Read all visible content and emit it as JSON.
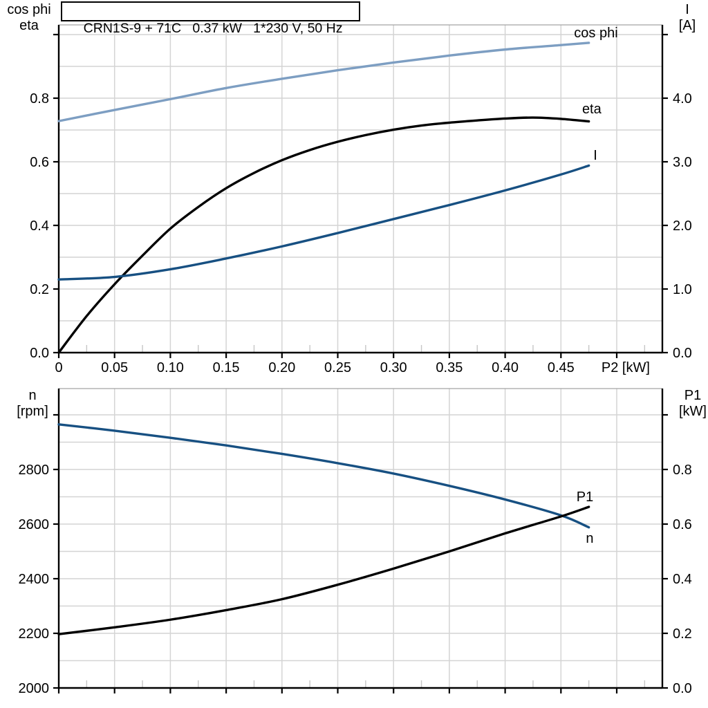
{
  "colors": {
    "curve_black": "#000000",
    "curve_light_blue": "#7d9ec2",
    "curve_dark_blue": "#175082",
    "grid": "#d4d4d4",
    "frame": "#a0a0a0",
    "axis": "#000000",
    "minor_tick": "#c6c6c6",
    "background": "#ffffff"
  },
  "corner_labels": {
    "top_left": [
      "cos phi",
      "eta"
    ],
    "top_right": [
      "I",
      "[A]"
    ],
    "bottom_left": [
      "n",
      "[rpm]"
    ],
    "bottom_right": [
      "P1",
      "[kW]"
    ]
  },
  "chart_data": [
    {
      "id": "top",
      "type": "line",
      "title": "CRN1S-9 + 71C   0.37 kW   1*230 V, 50 Hz",
      "x_axis": {
        "label": "P2 [kW]",
        "label_x": 0.508,
        "min": 0,
        "max": 0.54089,
        "minor_step": 0.025,
        "grid": [
          0.05,
          0.1,
          0.15,
          0.2,
          0.25,
          0.3,
          0.35,
          0.4,
          0.45,
          0.5
        ],
        "ticks": [
          {
            "v": 0,
            "t": "0"
          },
          {
            "v": 0.05,
            "t": "0.05"
          },
          {
            "v": 0.1,
            "t": "0.10"
          },
          {
            "v": 0.15,
            "t": "0.15"
          },
          {
            "v": 0.2,
            "t": "0.20"
          },
          {
            "v": 0.25,
            "t": "0.25"
          },
          {
            "v": 0.3,
            "t": "0.30"
          },
          {
            "v": 0.35,
            "t": "0.35"
          },
          {
            "v": 0.4,
            "t": "0.40"
          },
          {
            "v": 0.45,
            "t": "0.45"
          },
          {
            "v": 0.5,
            "t": ""
          }
        ]
      },
      "y_left": {
        "name": "cos phi / eta",
        "min": 0,
        "max": 1.03043,
        "grid": [
          0.1,
          0.2,
          0.3,
          0.4,
          0.5,
          0.6,
          0.7,
          0.8,
          0.9,
          1.0
        ],
        "ticks": [
          {
            "v": 0.0,
            "t": "0.0"
          },
          {
            "v": 0.2,
            "t": "0.2"
          },
          {
            "v": 0.4,
            "t": "0.4"
          },
          {
            "v": 0.6,
            "t": "0.6"
          },
          {
            "v": 0.8,
            "t": "0.8"
          },
          {
            "v": 1.0,
            "t": ""
          }
        ]
      },
      "y_right": {
        "name": "I [A]",
        "min": 0,
        "max": 5.15217,
        "ticks": [
          {
            "v": 0,
            "t": "0.0"
          },
          {
            "v": 1,
            "t": "1.0"
          },
          {
            "v": 2,
            "t": "2.0"
          },
          {
            "v": 3,
            "t": "3.0"
          },
          {
            "v": 4,
            "t": "4.0"
          },
          {
            "v": 5,
            "t": ""
          }
        ]
      },
      "series": [
        {
          "name": "cos-phi",
          "axis": "left",
          "color": "curve_light_blue",
          "width": 3.4,
          "points": [
            [
              0,
              0.728
            ],
            [
              0.05,
              0.763
            ],
            [
              0.1,
              0.797
            ],
            [
              0.15,
              0.832
            ],
            [
              0.2,
              0.861
            ],
            [
              0.25,
              0.888
            ],
            [
              0.3,
              0.912
            ],
            [
              0.35,
              0.934
            ],
            [
              0.4,
              0.953
            ],
            [
              0.45,
              0.967
            ],
            [
              0.475,
              0.974
            ]
          ],
          "label": {
            "text": "cos phi",
            "x": 0.4814,
            "y": 0.9913
          }
        },
        {
          "name": "eta",
          "axis": "left",
          "color": "curve_black",
          "width": 3.4,
          "points": [
            [
              0,
              0
            ],
            [
              0.025,
              0.115
            ],
            [
              0.05,
              0.215
            ],
            [
              0.075,
              0.305
            ],
            [
              0.1,
              0.39
            ],
            [
              0.125,
              0.458
            ],
            [
              0.15,
              0.517
            ],
            [
              0.175,
              0.565
            ],
            [
              0.2,
              0.605
            ],
            [
              0.225,
              0.637
            ],
            [
              0.25,
              0.663
            ],
            [
              0.275,
              0.684
            ],
            [
              0.3,
              0.701
            ],
            [
              0.325,
              0.714
            ],
            [
              0.35,
              0.723
            ],
            [
              0.375,
              0.73
            ],
            [
              0.4,
              0.736
            ],
            [
              0.425,
              0.739
            ],
            [
              0.45,
              0.735
            ],
            [
              0.475,
              0.727
            ]
          ],
          "label": {
            "text": "eta",
            "x": 0.4776,
            "y": 0.7522
          }
        },
        {
          "name": "current",
          "axis": "right",
          "color": "curve_dark_blue",
          "width": 3.4,
          "points": [
            [
              0,
              1.15
            ],
            [
              0.05,
              1.19
            ],
            [
              0.1,
              1.31
            ],
            [
              0.15,
              1.48
            ],
            [
              0.2,
              1.67
            ],
            [
              0.25,
              1.88
            ],
            [
              0.3,
              2.1
            ],
            [
              0.35,
              2.32
            ],
            [
              0.4,
              2.55
            ],
            [
              0.45,
              2.8
            ],
            [
              0.475,
              2.94
            ]
          ],
          "label": {
            "text": "I",
            "x": 0.4808,
            "y": 3.0326
          }
        }
      ]
    },
    {
      "id": "bottom",
      "type": "line",
      "title": "",
      "x_axis": {
        "label": "",
        "label_x": 0.508,
        "min": 0,
        "max": 0.54089,
        "minor_step": 0.025,
        "grid": [
          0.05,
          0.1,
          0.15,
          0.2,
          0.25,
          0.3,
          0.35,
          0.4,
          0.45,
          0.5
        ],
        "ticks": [
          {
            "v": 0,
            "t": ""
          },
          {
            "v": 0.05,
            "t": ""
          },
          {
            "v": 0.1,
            "t": ""
          },
          {
            "v": 0.15,
            "t": ""
          },
          {
            "v": 0.2,
            "t": ""
          },
          {
            "v": 0.25,
            "t": ""
          },
          {
            "v": 0.3,
            "t": ""
          },
          {
            "v": 0.35,
            "t": ""
          },
          {
            "v": 0.4,
            "t": ""
          },
          {
            "v": 0.45,
            "t": ""
          },
          {
            "v": 0.5,
            "t": ""
          }
        ]
      },
      "y_left": {
        "name": "n [rpm]",
        "min": 2000,
        "max": 3096.2,
        "grid": [
          2100,
          2200,
          2300,
          2400,
          2500,
          2600,
          2700,
          2800,
          2900,
          3000
        ],
        "ticks": [
          {
            "v": 2000,
            "t": "2000"
          },
          {
            "v": 2200,
            "t": "2200"
          },
          {
            "v": 2400,
            "t": "2400"
          },
          {
            "v": 2600,
            "t": "2600"
          },
          {
            "v": 2800,
            "t": "2800"
          },
          {
            "v": 3000,
            "t": ""
          }
        ]
      },
      "y_right": {
        "name": "P1 [kW]",
        "min": 0,
        "max": 1.0962,
        "ticks": [
          {
            "v": 0.0,
            "t": "0.0"
          },
          {
            "v": 0.2,
            "t": "0.2"
          },
          {
            "v": 0.4,
            "t": "0.4"
          },
          {
            "v": 0.6,
            "t": "0.6"
          },
          {
            "v": 0.8,
            "t": "0.8"
          },
          {
            "v": 1.0,
            "t": ""
          }
        ]
      },
      "series": [
        {
          "name": "speed",
          "axis": "left",
          "color": "curve_dark_blue",
          "width": 3.4,
          "points": [
            [
              0,
              2965
            ],
            [
              0.05,
              2942
            ],
            [
              0.1,
              2916
            ],
            [
              0.15,
              2888
            ],
            [
              0.2,
              2857
            ],
            [
              0.25,
              2823
            ],
            [
              0.3,
              2785
            ],
            [
              0.35,
              2740
            ],
            [
              0.4,
              2690
            ],
            [
              0.45,
              2632
            ],
            [
              0.475,
              2588
            ]
          ],
          "label": {
            "text": "n",
            "x": 0.4758,
            "y": 2531.6
          }
        },
        {
          "name": "input-power",
          "axis": "right",
          "color": "curve_black",
          "width": 3.4,
          "points": [
            [
              0,
              0.197
            ],
            [
              0.05,
              0.222
            ],
            [
              0.1,
              0.25
            ],
            [
              0.15,
              0.285
            ],
            [
              0.2,
              0.325
            ],
            [
              0.25,
              0.378
            ],
            [
              0.3,
              0.437
            ],
            [
              0.35,
              0.5
            ],
            [
              0.4,
              0.566
            ],
            [
              0.45,
              0.628
            ],
            [
              0.475,
              0.663
            ]
          ],
          "label": {
            "text": "P1",
            "x": 0.4715,
            "y": 0.6835
          }
        }
      ]
    }
  ]
}
